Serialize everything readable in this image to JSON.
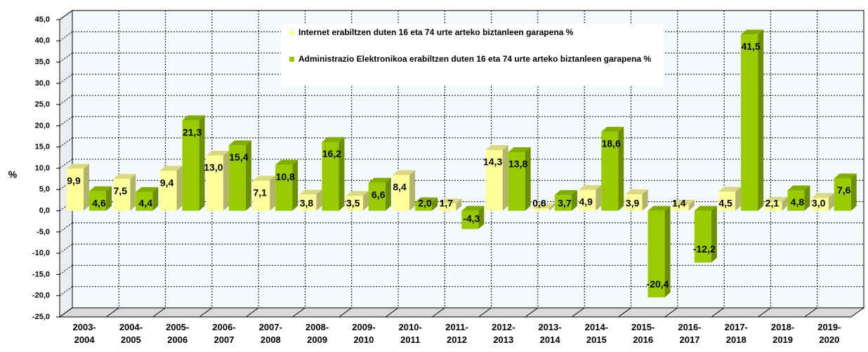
{
  "chart_data": {
    "type": "bar3d",
    "y_label": "%",
    "categories": [
      "2003-2004",
      "2004-2005",
      "2005-2006",
      "2006-2007",
      "2007-2008",
      "2008-2009",
      "2009-2010",
      "2010-2011",
      "2011-2012",
      "2012-2013",
      "2013-2014",
      "2014-2015",
      "2015-2016",
      "2016-2017",
      "2017-2018",
      "2018-2019",
      "2019-2020"
    ],
    "series": [
      {
        "name": "Internet erabiltzen duten 16 eta 74 urte arteko biztanleen garapena %",
        "color": "#ffff99",
        "values": [
          9.9,
          7.5,
          9.4,
          13.0,
          7.1,
          3.8,
          3.5,
          8.4,
          1.7,
          14.3,
          0.6,
          4.9,
          3.9,
          1.4,
          4.5,
          2.1,
          3.0
        ],
        "value_labels": [
          "9,9",
          "7,5",
          "9,4",
          "13,0",
          "7,1",
          "3,8",
          "3,5",
          "8,4",
          "1,7",
          "14,3",
          "0,6",
          "4,9",
          "3,9",
          "1,4",
          "4,5",
          "2,1",
          "3,0"
        ]
      },
      {
        "name": "Administrazio Elektronikoa erabiltzen duten 16 eta 74 urte arteko biztanleen garapena %",
        "color": "#99cc00",
        "values": [
          4.6,
          4.4,
          21.3,
          15.4,
          10.8,
          16.2,
          6.6,
          2.0,
          -4.3,
          13.8,
          3.7,
          18.6,
          -20.4,
          -12.2,
          41.5,
          4.8,
          7.6
        ],
        "value_labels": [
          "4,6",
          "4,4",
          "21,3",
          "15,4",
          "10,8",
          "16,2",
          "6,6",
          "2,0",
          "-4,3",
          "13,8",
          "3,7",
          "18,6",
          "-20,4",
          "-12,2",
          "41,5",
          "4,8",
          "7,6"
        ]
      }
    ],
    "ylim": [
      -25,
      45
    ],
    "yticks": [
      {
        "value": -25,
        "label": "-25,0"
      },
      {
        "value": -20,
        "label": "-20,0"
      },
      {
        "value": -15,
        "label": "-15,0"
      },
      {
        "value": -10,
        "label": "-10,0"
      },
      {
        "value": -5,
        "label": "-5,0"
      },
      {
        "value": 0,
        "label": "0,0"
      },
      {
        "value": 5,
        "label": "5,0"
      },
      {
        "value": 10,
        "label": "10,0"
      },
      {
        "value": 15,
        "label": "15,0"
      },
      {
        "value": 20,
        "label": "20,0"
      },
      {
        "value": 25,
        "label": "25,0"
      },
      {
        "value": 30,
        "label": "30,0"
      },
      {
        "value": 35,
        "label": "35,0"
      },
      {
        "value": 40,
        "label": "40,0"
      },
      {
        "value": 45,
        "label": "45,0"
      }
    ],
    "grid": true
  }
}
